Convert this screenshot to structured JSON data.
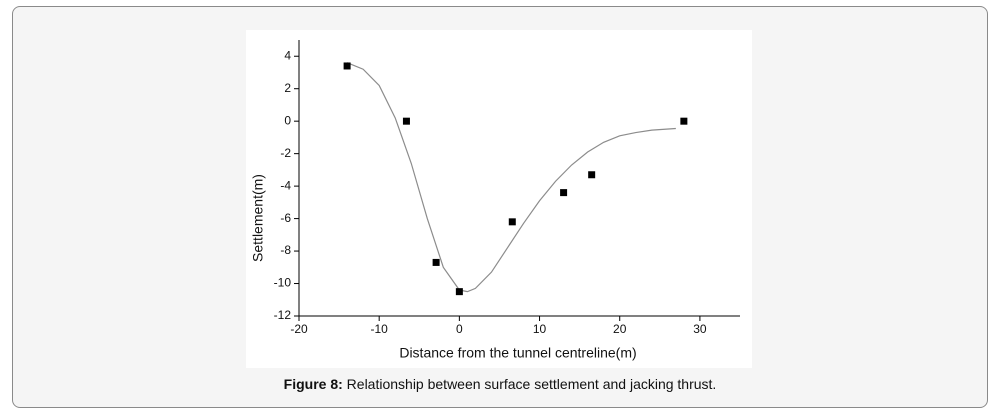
{
  "chart_data": {
    "type": "scatter",
    "x_label": "Distance from the tunnel centreline(m)",
    "y_label": "Settlement(m)",
    "xlim": [
      -20,
      35
    ],
    "xticks": [
      -20,
      -10,
      0,
      10,
      20,
      30
    ],
    "ylim": [
      -12,
      5
    ],
    "yticks": [
      -12,
      -10,
      -8,
      -6,
      -4,
      -2,
      0,
      2,
      4
    ],
    "series": [
      {
        "mode": "markers",
        "color": "#000000",
        "x": [
          -14,
          -6.6,
          -2.9,
          0,
          6.6,
          13,
          16.5,
          28
        ],
        "values": [
          3.4,
          0,
          -8.7,
          -10.5,
          -6.2,
          -4.4,
          -3.3,
          0
        ]
      },
      {
        "mode": "line",
        "color": "#8c8c8c",
        "x": [
          -14,
          -12,
          -10,
          -8,
          -6,
          -4,
          -2,
          0,
          1,
          2,
          4,
          6,
          8,
          10,
          12,
          14,
          16,
          18,
          20,
          22,
          24,
          27
        ],
        "values": [
          3.6,
          3.2,
          2.2,
          0.2,
          -2.6,
          -6.0,
          -9.0,
          -10.4,
          -10.5,
          -10.3,
          -9.3,
          -7.8,
          -6.3,
          -4.9,
          -3.7,
          -2.7,
          -1.9,
          -1.3,
          -0.9,
          -0.7,
          -0.55,
          -0.45
        ]
      }
    ]
  },
  "caption": {
    "label": "Figure 8:",
    "text": "Relationship between surface settlement and jacking thrust."
  }
}
